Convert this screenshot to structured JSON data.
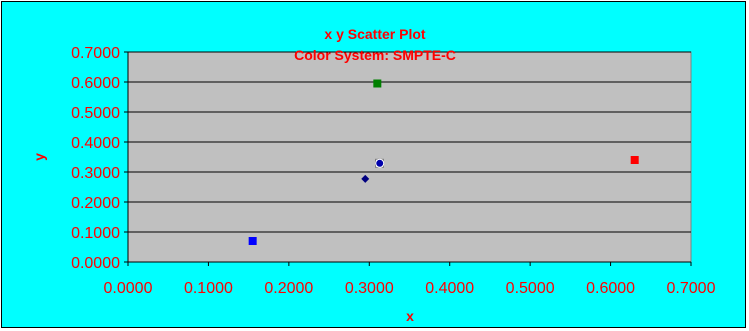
{
  "chart_data": {
    "type": "scatter",
    "title_lines": [
      "x y Scatter Plot",
      "Color System: SMPTE-C"
    ],
    "xlabel": "x",
    "ylabel": "y",
    "xlim": [
      0,
      0.7
    ],
    "ylim": [
      0,
      0.7
    ],
    "xticks": [
      "0.0000",
      "0.1000",
      "0.2000",
      "0.3000",
      "0.4000",
      "0.5000",
      "0.6000",
      "0.7000"
    ],
    "yticks": [
      "0.0000",
      "0.1000",
      "0.2000",
      "0.3000",
      "0.4000",
      "0.5000",
      "0.6000",
      "0.7000"
    ],
    "tick_values": [
      0,
      0.1,
      0.2,
      0.3,
      0.4,
      0.5,
      0.6,
      0.7
    ],
    "grid": true,
    "points": [
      {
        "x": 0.63,
        "y": 0.34,
        "color": "#ff0000",
        "marker": "square"
      },
      {
        "x": 0.31,
        "y": 0.595,
        "color": "#008000",
        "marker": "square"
      },
      {
        "x": 0.155,
        "y": 0.07,
        "color": "#0000ff",
        "marker": "square"
      },
      {
        "x": 0.3127,
        "y": 0.329,
        "color": "#ffffff",
        "marker": "square"
      },
      {
        "x": 0.313,
        "y": 0.329,
        "color": "#0000aa",
        "marker": "circle"
      },
      {
        "x": 0.295,
        "y": 0.277,
        "color": "#000080",
        "marker": "diamond"
      }
    ],
    "colors": {
      "background": "#00ffff",
      "plot_area": "#c0c0c0",
      "text": "#ff0000",
      "grid": "#000000"
    }
  }
}
